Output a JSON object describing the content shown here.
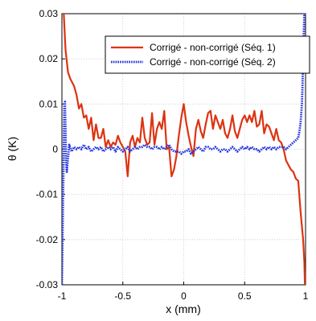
{
  "chart_data": {
    "type": "line",
    "xlabel": "x (mm)",
    "ylabel": "θ (K)",
    "xlim": [
      -1,
      1
    ],
    "ylim": [
      -0.03,
      0.03
    ],
    "x_ticks": [
      "-1",
      "-0.5",
      "0",
      "0.5",
      "1"
    ],
    "y_ticks": [
      "-0.03",
      "-0.02",
      "-0.01",
      "0",
      "0.01",
      "0.02",
      "0.03"
    ],
    "grid": true,
    "legend_position": "top-right",
    "series": [
      {
        "name": "Corrigé - non-corrigé (Séq. 1)",
        "color": "#dd3311",
        "style": "solid",
        "x": [
          -0.985,
          -0.97,
          -0.95,
          -0.93,
          -0.9,
          -0.88,
          -0.86,
          -0.84,
          -0.82,
          -0.8,
          -0.78,
          -0.76,
          -0.74,
          -0.72,
          -0.7,
          -0.68,
          -0.66,
          -0.64,
          -0.62,
          -0.6,
          -0.58,
          -0.56,
          -0.54,
          -0.52,
          -0.5,
          -0.48,
          -0.46,
          -0.44,
          -0.42,
          -0.4,
          -0.38,
          -0.36,
          -0.34,
          -0.32,
          -0.3,
          -0.28,
          -0.26,
          -0.24,
          -0.22,
          -0.2,
          -0.18,
          -0.16,
          -0.14,
          -0.12,
          -0.1,
          -0.08,
          -0.06,
          -0.04,
          -0.02,
          0.0,
          0.02,
          0.04,
          0.06,
          0.08,
          0.1,
          0.12,
          0.14,
          0.16,
          0.18,
          0.2,
          0.22,
          0.24,
          0.26,
          0.28,
          0.3,
          0.32,
          0.34,
          0.36,
          0.38,
          0.4,
          0.42,
          0.44,
          0.46,
          0.48,
          0.5,
          0.52,
          0.54,
          0.56,
          0.58,
          0.6,
          0.62,
          0.64,
          0.66,
          0.68,
          0.7,
          0.72,
          0.74,
          0.76,
          0.78,
          0.8,
          0.82,
          0.84,
          0.86,
          0.88,
          0.9,
          0.92,
          0.94,
          0.96,
          0.98,
          0.99,
          0.995
        ],
        "y": [
          0.03,
          0.022,
          0.017,
          0.0155,
          0.014,
          0.012,
          0.009,
          0.01,
          0.007,
          0.0075,
          0.0045,
          0.007,
          0.002,
          0.0055,
          0.0025,
          0.0025,
          0.0045,
          0.0005,
          0.002,
          0.0005,
          0.0015,
          0.001,
          0.003,
          0.0015,
          0.0005,
          -0.0005,
          -0.006,
          0.0015,
          0.003,
          0.0005,
          0.0025,
          0.0015,
          0.007,
          0.0025,
          0.001,
          0.0015,
          0.008,
          0.001,
          0.0045,
          0.006,
          0.0045,
          0.0085,
          0.0,
          0.0005,
          -0.006,
          -0.0045,
          -0.0015,
          0.003,
          0.007,
          0.01,
          0.006,
          0.003,
          0.0005,
          -0.0015,
          0.0045,
          0.0065,
          0.004,
          0.0025,
          0.0055,
          0.008,
          0.0085,
          0.0045,
          0.0075,
          0.006,
          0.0045,
          0.0065,
          0.0035,
          0.0025,
          0.0045,
          0.0075,
          0.004,
          0.0025,
          0.0045,
          0.0065,
          0.0075,
          0.006,
          0.0075,
          0.006,
          0.0085,
          0.005,
          0.0055,
          0.0085,
          0.0035,
          0.0055,
          0.005,
          0.0035,
          0.002,
          0.0045,
          0.002,
          0.0015,
          0.0,
          -0.0025,
          -0.0035,
          -0.0045,
          -0.005,
          -0.0065,
          -0.007,
          -0.014,
          -0.02,
          -0.025,
          -0.03
        ]
      },
      {
        "name": "Corrigé - non-corrigé (Séq. 2)",
        "color": "#2233dd",
        "style": "dotted",
        "x": [
          -1.0,
          -0.995,
          -0.99,
          -0.985,
          -0.98,
          -0.975,
          -0.97,
          -0.965,
          -0.96,
          -0.95,
          -0.94,
          -0.92,
          -0.9,
          -0.88,
          -0.86,
          -0.84,
          -0.82,
          -0.8,
          -0.78,
          -0.76,
          -0.74,
          -0.72,
          -0.7,
          -0.68,
          -0.66,
          -0.64,
          -0.62,
          -0.6,
          -0.58,
          -0.56,
          -0.54,
          -0.52,
          -0.5,
          -0.48,
          -0.46,
          -0.44,
          -0.42,
          -0.4,
          -0.38,
          -0.36,
          -0.34,
          -0.32,
          -0.3,
          -0.28,
          -0.26,
          -0.24,
          -0.22,
          -0.2,
          -0.18,
          -0.16,
          -0.14,
          -0.12,
          -0.1,
          -0.08,
          -0.06,
          -0.04,
          -0.02,
          0.0,
          0.02,
          0.04,
          0.06,
          0.08,
          0.1,
          0.12,
          0.14,
          0.16,
          0.18,
          0.2,
          0.22,
          0.24,
          0.26,
          0.28,
          0.3,
          0.32,
          0.34,
          0.36,
          0.38,
          0.4,
          0.42,
          0.44,
          0.46,
          0.48,
          0.5,
          0.52,
          0.54,
          0.56,
          0.58,
          0.6,
          0.62,
          0.64,
          0.66,
          0.68,
          0.7,
          0.72,
          0.74,
          0.76,
          0.78,
          0.8,
          0.82,
          0.84,
          0.86,
          0.88,
          0.9,
          0.92,
          0.94,
          0.95,
          0.96,
          0.97,
          0.975,
          0.98,
          0.985,
          0.99,
          0.995
        ],
        "y": [
          -0.03,
          -0.02,
          -0.01,
          0.0,
          0.01,
          0.0105,
          0.004,
          -0.003,
          -0.005,
          -0.002,
          0.001,
          -0.0005,
          0.0005,
          0.0,
          0.0005,
          0.0,
          0.001,
          0.0,
          0.0005,
          -0.0005,
          0.0,
          0.0005,
          0.0,
          0.0005,
          -0.0005,
          0.0,
          0.0005,
          0.0,
          0.0005,
          -0.0005,
          0.0005,
          0.0,
          -0.0005,
          0.0,
          0.0005,
          -0.0005,
          0.0,
          0.0005,
          0.0,
          0.0005,
          0.0005,
          0.001,
          0.0005,
          0.0005,
          0.0,
          0.0005,
          0.0005,
          0.0,
          0.0005,
          0.0,
          0.0005,
          0.001,
          0.0,
          -0.0005,
          -0.0005,
          -0.0005,
          -0.001,
          -0.0005,
          -0.0005,
          0.0,
          -0.001,
          -0.0005,
          0.0,
          0.0005,
          0.0,
          -0.0005,
          0.0005,
          0.0005,
          0.0,
          0.0,
          0.0005,
          0.0,
          -0.0005,
          0.0,
          0.0,
          -0.0005,
          0.0,
          0.0005,
          0.0,
          -0.0005,
          0.0,
          0.0005,
          0.0,
          0.0005,
          0.0,
          0.0005,
          0.0,
          0.0,
          -0.0005,
          0.0,
          0.0005,
          0.0,
          0.0005,
          0.0,
          0.0005,
          0.0,
          0.0005,
          0.0005,
          0.0005,
          0.0,
          0.0005,
          0.001,
          0.0015,
          0.002,
          0.0025,
          0.004,
          0.006,
          0.01,
          0.014,
          0.02,
          0.025,
          0.03,
          0.03
        ]
      }
    ]
  }
}
